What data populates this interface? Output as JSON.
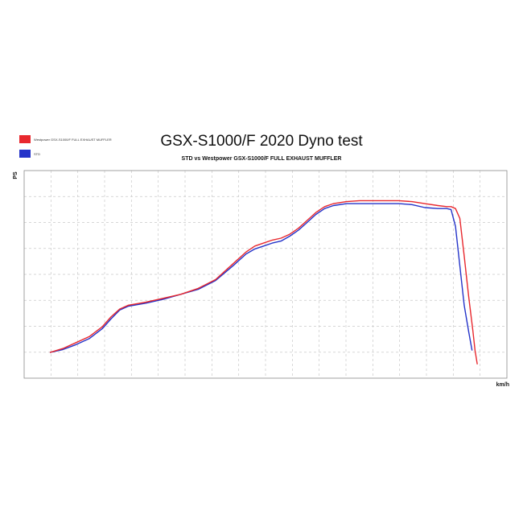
{
  "chart_data": {
    "type": "line",
    "title": "GSX-S1000/F 2020 Dyno test",
    "subtitle": "STD vs Westpower GSX-S1000/F FULL EXHAUST MUFFLER",
    "xlabel": "km/h",
    "ylabel": "PS",
    "grid": true,
    "legend_position": "top-left",
    "xlim": [
      0,
      100
    ],
    "ylim": [
      0,
      100
    ],
    "series": [
      {
        "name": "Westpower GSX-S1000/F FULL EXHAUST MUFFLER",
        "color": "#e8282e",
        "x": [
          0,
          3,
          6,
          9,
          12,
          14,
          16,
          18,
          22,
          26,
          30,
          34,
          38,
          42,
          45,
          47,
          49,
          51,
          53,
          55,
          57,
          59,
          61,
          63,
          65,
          68,
          71,
          74,
          77,
          80,
          83,
          86,
          89,
          91,
          92,
          93,
          94,
          95,
          96,
          97,
          97.5,
          98
        ],
        "y": [
          11,
          13,
          16,
          19,
          24,
          29,
          33,
          35,
          36.5,
          38.5,
          40.5,
          43.5,
          48,
          56,
          62,
          65,
          66.5,
          68,
          69,
          71,
          74,
          78,
          82,
          85,
          86.5,
          87.5,
          88,
          88,
          88,
          88,
          87.5,
          86.5,
          85.5,
          85,
          85,
          84,
          79,
          60,
          40,
          22,
          12,
          5
        ]
      },
      {
        "name": "STD",
        "color": "#2433c9",
        "x": [
          0,
          3,
          6,
          9,
          12,
          14,
          16,
          18,
          22,
          26,
          30,
          34,
          38,
          42,
          45,
          47,
          49,
          51,
          53,
          55,
          57,
          59,
          61,
          63,
          65,
          68,
          71,
          74,
          77,
          80,
          83,
          86,
          89,
          91,
          92,
          93,
          94,
          95,
          96,
          96.8
        ],
        "y": [
          11,
          12.5,
          15,
          18,
          23,
          28,
          32.5,
          34.5,
          36,
          38,
          40.5,
          43,
          47.5,
          55,
          61,
          63.5,
          65,
          66.5,
          67.5,
          70,
          73,
          77,
          81,
          84,
          85.5,
          86.5,
          86.5,
          86.5,
          86.5,
          86.5,
          86,
          84.5,
          84,
          84,
          83.5,
          75,
          55,
          35,
          22,
          12
        ]
      }
    ]
  }
}
